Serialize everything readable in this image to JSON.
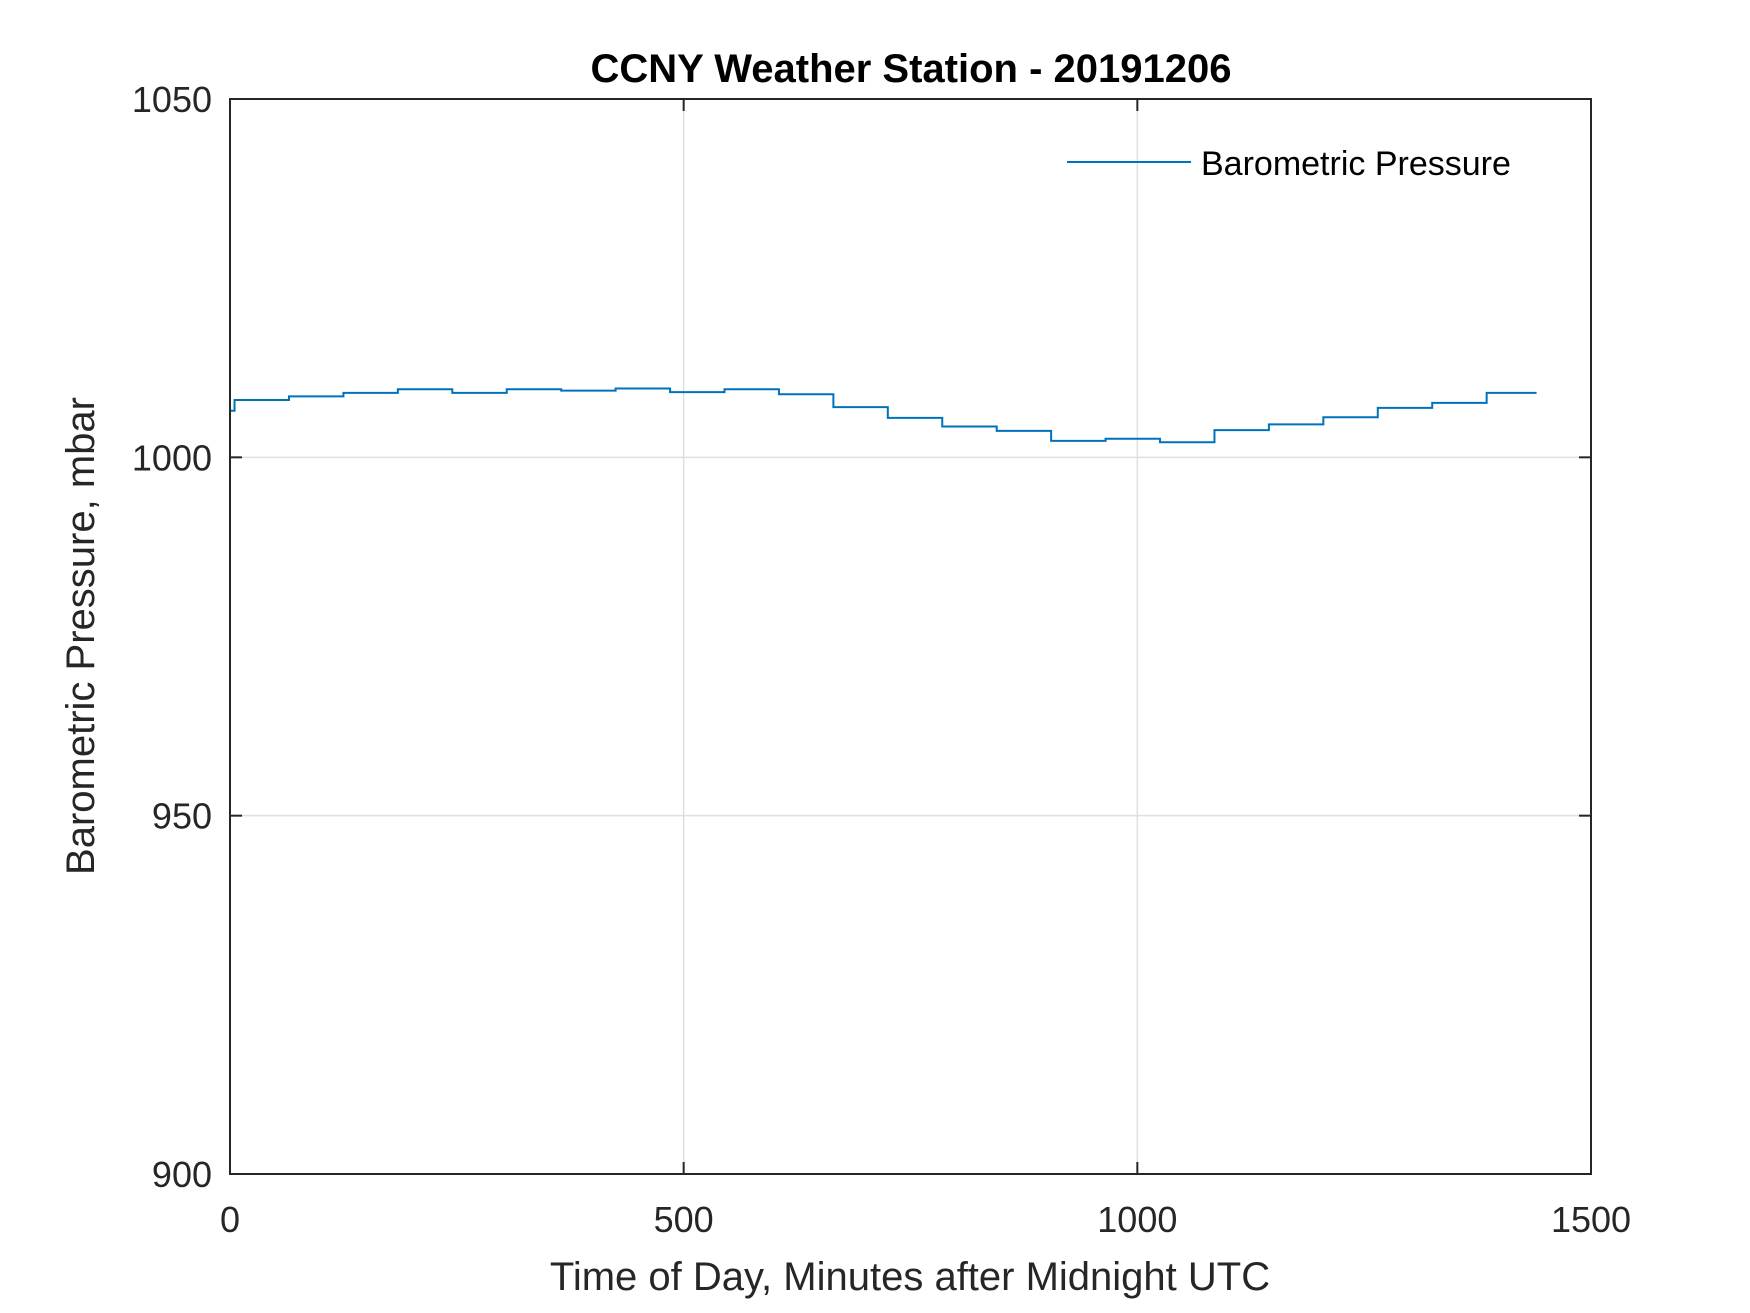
{
  "chart_data": {
    "type": "line",
    "title": "CCNY Weather Station - 20191206",
    "xlabel": "Time of Day, Minutes after Midnight UTC",
    "ylabel": "Barometric Pressure, mbar",
    "xlim": [
      0,
      1500
    ],
    "ylim": [
      900,
      1050
    ],
    "xticks": [
      0,
      500,
      1000,
      1500
    ],
    "yticks": [
      900,
      950,
      1000,
      1050
    ],
    "grid": true,
    "legend_position": "top-right",
    "colors": {
      "series": "#0072BD"
    },
    "series": [
      {
        "name": "Barometric Pressure",
        "x": [
          0,
          5,
          5,
          65,
          65,
          125,
          125,
          185,
          185,
          245,
          245,
          305,
          305,
          365,
          365,
          425,
          425,
          485,
          485,
          545,
          545,
          605,
          605,
          665,
          665,
          725,
          725,
          785,
          785,
          845,
          845,
          905,
          905,
          965,
          965,
          1025,
          1025,
          1085,
          1085,
          1145,
          1145,
          1205,
          1205,
          1265,
          1265,
          1325,
          1325,
          1385,
          1385,
          1440
        ],
        "y": [
          1006.5,
          1006.5,
          1008.0,
          1008.0,
          1008.5,
          1008.5,
          1009.0,
          1009.0,
          1009.5,
          1009.5,
          1009.0,
          1009.0,
          1009.5,
          1009.5,
          1009.3,
          1009.3,
          1009.6,
          1009.6,
          1009.1,
          1009.1,
          1009.5,
          1009.5,
          1008.8,
          1008.8,
          1007.0,
          1007.0,
          1005.5,
          1005.5,
          1004.3,
          1004.3,
          1003.7,
          1003.7,
          1002.3,
          1002.3,
          1002.6,
          1002.6,
          1002.1,
          1002.1,
          1003.8,
          1003.8,
          1004.6,
          1004.6,
          1005.6,
          1005.6,
          1006.9,
          1006.9,
          1007.6,
          1007.6,
          1009.0,
          1009.0
        ]
      }
    ]
  }
}
